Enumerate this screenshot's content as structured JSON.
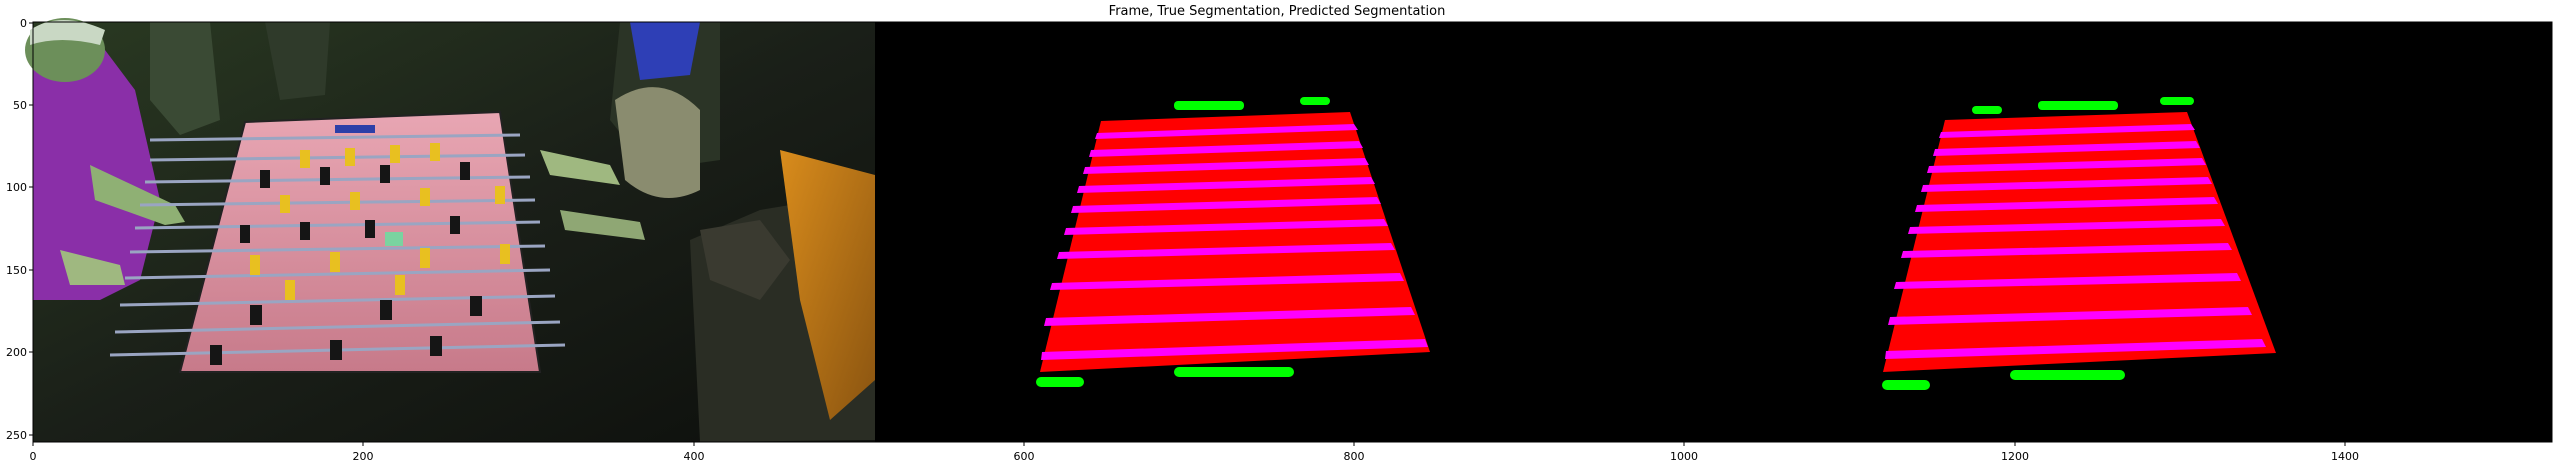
{
  "figure": {
    "title": "Frame, True Segmentation, Predicted Segmentation",
    "x_ticks": [
      "0",
      "200",
      "400",
      "600",
      "800",
      "1000",
      "1200",
      "1400"
    ],
    "y_ticks": [
      "0",
      "50",
      "100",
      "150",
      "200",
      "250"
    ],
    "colors": {
      "background": "#ffffff",
      "mask_background": "#000000",
      "table_class": "#ff0000",
      "rod_class": "#ff00ff",
      "goal_class": "#00ff00"
    }
  },
  "panels": [
    {
      "name": "frame",
      "icon": "foosball-photo-icon"
    },
    {
      "name": "true-segmentation",
      "icon": "segmentation-mask-icon"
    },
    {
      "name": "predicted-segmentation",
      "icon": "segmentation-mask-icon"
    }
  ]
}
